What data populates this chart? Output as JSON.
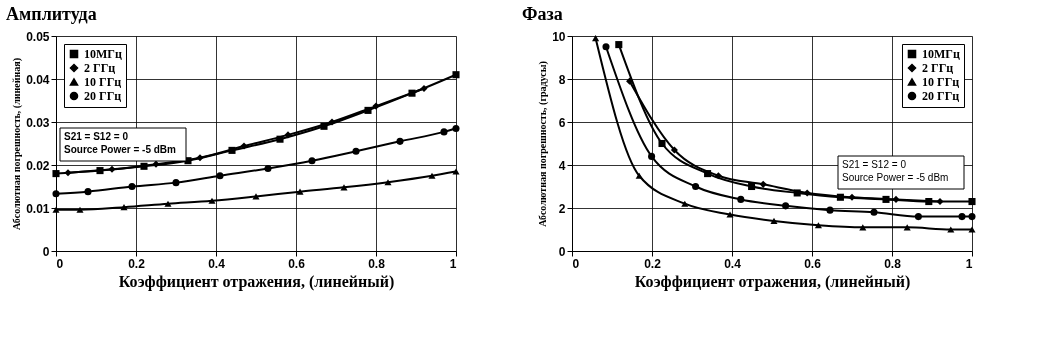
{
  "chart_data": [
    {
      "type": "line",
      "title": "Амплитуда",
      "xlabel": "Коэффициент отражения, (линейный)",
      "ylabel": "Абсолютная погрешность, (линейная)",
      "xlim": [
        0,
        1
      ],
      "xticks": [
        0,
        0.2,
        0.4,
        0.6,
        0.8,
        1
      ],
      "ylim": [
        0,
        0.05
      ],
      "yticks": [
        0,
        0.01,
        0.02,
        0.03,
        0.04,
        0.05
      ],
      "grid": true,
      "legend": "top left",
      "annotations": [
        "S21 = S12 = 0",
        "Source Power = -5 dBm"
      ],
      "series": [
        {
          "name": "10МГц",
          "color": "#000000",
          "marker": "square",
          "x": [
            0,
            0.11,
            0.22,
            0.33,
            0.44,
            0.56,
            0.67,
            0.78,
            0.89,
            1.0
          ],
          "values": [
            0.018,
            0.0187,
            0.0197,
            0.021,
            0.0234,
            0.026,
            0.029,
            0.0327,
            0.0367,
            0.041
          ]
        },
        {
          "name": "2 ГГц",
          "color": "#000000",
          "marker": "diamond",
          "x": [
            0.03,
            0.14,
            0.25,
            0.36,
            0.47,
            0.58,
            0.69,
            0.8,
            0.92
          ],
          "values": [
            0.0182,
            0.019,
            0.0202,
            0.0217,
            0.0244,
            0.027,
            0.03,
            0.0337,
            0.0378
          ]
        },
        {
          "name": "10 ГГц",
          "color": "#000000",
          "marker": "triangle",
          "x": [
            0,
            0.06,
            0.17,
            0.28,
            0.39,
            0.5,
            0.61,
            0.72,
            0.83,
            0.94,
            1.0
          ],
          "values": [
            0.0096,
            0.0096,
            0.0102,
            0.011,
            0.0117,
            0.0127,
            0.0138,
            0.0148,
            0.016,
            0.0175,
            0.0185
          ]
        },
        {
          "name": "20 ГГц",
          "color": "#000000",
          "marker": "circle",
          "x": [
            0,
            0.08,
            0.19,
            0.3,
            0.41,
            0.53,
            0.64,
            0.75,
            0.86,
            0.97,
            1.0
          ],
          "values": [
            0.0133,
            0.0138,
            0.015,
            0.0159,
            0.0175,
            0.0192,
            0.021,
            0.0232,
            0.0255,
            0.0277,
            0.0285
          ]
        }
      ]
    },
    {
      "type": "line",
      "title": "Фаза",
      "xlabel": "Коэффициент отражения, (линейный)",
      "ylabel": "Абсолютная погрешность, (градусы)",
      "xlim": [
        0,
        1
      ],
      "xticks": [
        0,
        0.2,
        0.4,
        0.6,
        0.8,
        1
      ],
      "ylim": [
        0,
        10
      ],
      "yticks": [
        0,
        2,
        4,
        6,
        8,
        10
      ],
      "grid": true,
      "legend": "top right",
      "annotations": [
        "S21 = S12 = 0",
        "Source Power = -5 dBm"
      ],
      "series": [
        {
          "name": "10МГц",
          "color": "#000000",
          "marker": "square",
          "x": [
            0.117,
            0.225,
            0.339,
            0.449,
            0.563,
            0.671,
            0.785,
            0.892,
            1.0
          ],
          "values": [
            9.6,
            5.0,
            3.6,
            3.0,
            2.7,
            2.5,
            2.4,
            2.3,
            2.3
          ]
        },
        {
          "name": "2 ГГц",
          "color": "#000000",
          "marker": "diamond",
          "x": [
            0.144,
            0.256,
            0.366,
            0.478,
            0.588,
            0.7,
            0.81,
            0.92
          ],
          "values": [
            7.9,
            4.7,
            3.5,
            3.1,
            2.7,
            2.5,
            2.4,
            2.3
          ]
        },
        {
          "name": "10 ГГц",
          "color": "#000000",
          "marker": "triangle",
          "x": [
            0.059,
            0.168,
            0.282,
            0.395,
            0.505,
            0.616,
            0.727,
            0.838,
            0.947,
            1.0
          ],
          "values": [
            9.9,
            3.5,
            2.2,
            1.7,
            1.4,
            1.2,
            1.1,
            1.1,
            1.0,
            1.0
          ]
        },
        {
          "name": "20 ГГц",
          "color": "#000000",
          "marker": "circle",
          "x": [
            0.085,
            0.199,
            0.309,
            0.422,
            0.534,
            0.645,
            0.755,
            0.866,
            0.975,
            1.0
          ],
          "values": [
            9.5,
            4.4,
            3.0,
            2.4,
            2.1,
            1.9,
            1.8,
            1.6,
            1.6,
            1.6
          ]
        }
      ]
    }
  ]
}
